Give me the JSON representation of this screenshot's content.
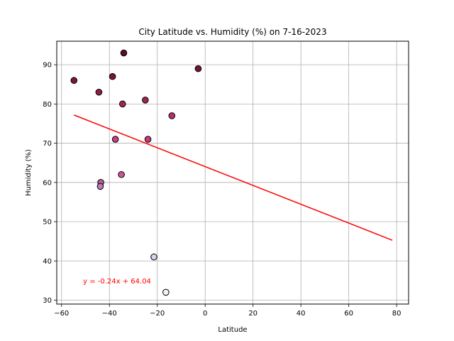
{
  "chart_data": {
    "type": "scatter",
    "title": "City Latitude vs. Humidity (%) on 7-16-2023",
    "xlabel": "Latitude",
    "ylabel": "Humidity (%)",
    "xlim": [
      -62,
      85
    ],
    "ylim": [
      29,
      96
    ],
    "xticks": [
      -60,
      -40,
      -20,
      0,
      20,
      40,
      60,
      80
    ],
    "yticks": [
      30,
      40,
      50,
      60,
      70,
      80,
      90
    ],
    "grid": true,
    "points": [
      {
        "x": -54.8,
        "y": 86,
        "color": "#80153f"
      },
      {
        "x": -44.4,
        "y": 83,
        "color": "#8f1b48"
      },
      {
        "x": -38.7,
        "y": 87,
        "color": "#7c133d"
      },
      {
        "x": -34.0,
        "y": 93,
        "color": "#5e0a2e"
      },
      {
        "x": -34.5,
        "y": 80,
        "color": "#a3255a"
      },
      {
        "x": -25.0,
        "y": 81,
        "color": "#a02354"
      },
      {
        "x": -2.9,
        "y": 89,
        "color": "#741238"
      },
      {
        "x": -13.9,
        "y": 77,
        "color": "#b8306a"
      },
      {
        "x": -37.5,
        "y": 71,
        "color": "#cc3f7c"
      },
      {
        "x": -23.9,
        "y": 71,
        "color": "#c83a78"
      },
      {
        "x": -43.6,
        "y": 60,
        "color": "#c25c99"
      },
      {
        "x": -43.8,
        "y": 59,
        "color": "#b87cb8"
      },
      {
        "x": -35.0,
        "y": 62,
        "color": "#d05497"
      },
      {
        "x": -21.4,
        "y": 41,
        "color": "#d4d1ea"
      },
      {
        "x": -16.4,
        "y": 32,
        "color": "#f2f1f8"
      }
    ],
    "regression": {
      "x": [
        -54.8,
        78.2
      ],
      "y": [
        77.19,
        45.27
      ],
      "color": "#ff0000",
      "equation": "y = -0.24x + 64.04",
      "equation_x": -51,
      "equation_y": 35
    }
  }
}
